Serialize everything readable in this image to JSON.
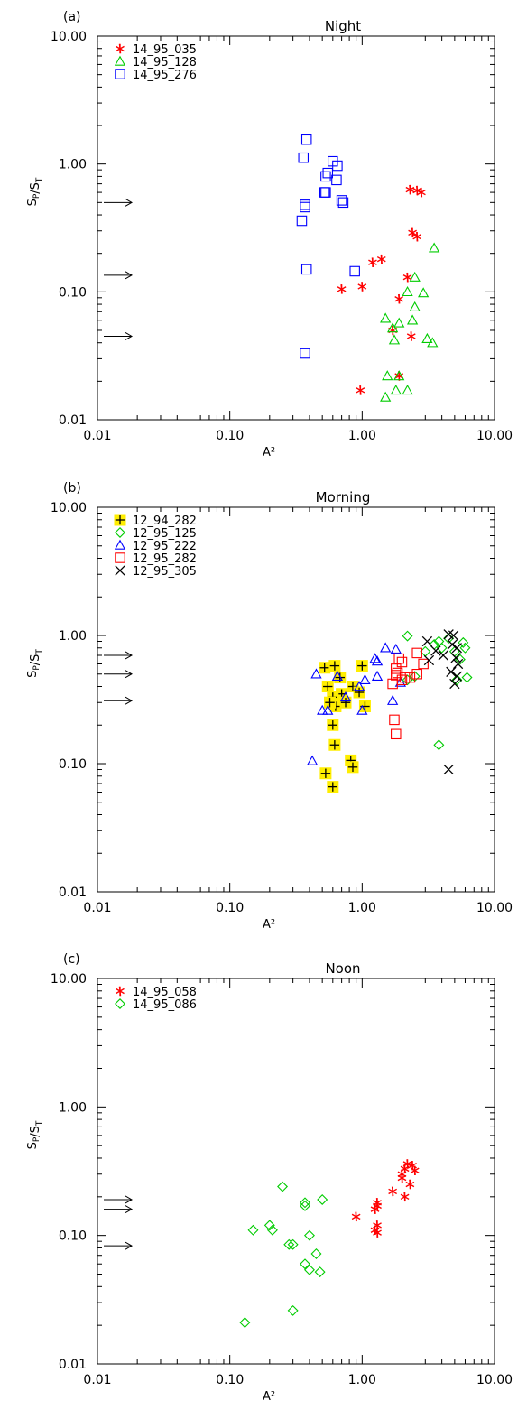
{
  "chart_data": [
    {
      "panel_label": "(a)",
      "title": "Night",
      "type": "scatter",
      "xlabel": "A²",
      "ylabel": "S_P/S_T",
      "xscale": "log",
      "yscale": "log",
      "xlim": [
        0.01,
        10
      ],
      "ylim": [
        0.01,
        10
      ],
      "x_tick_labels": [
        "0.01",
        "0.10",
        "1.00",
        "10.00"
      ],
      "y_tick_labels": [
        "0.01",
        "0.10",
        "1.00",
        "10.00"
      ],
      "legend_position": "top-left",
      "arrows_y": [
        0.5,
        0.135,
        0.045
      ],
      "series": [
        {
          "name": "14_95_035",
          "marker": "asterisk",
          "color": "#ff0000",
          "x": [
            2.3,
            2.6,
            2.8,
            2.4,
            2.6,
            1.4,
            1.2,
            2.2,
            1.0,
            0.7,
            1.9,
            1.7,
            2.35,
            1.9,
            0.97
          ],
          "y": [
            0.63,
            0.62,
            0.6,
            0.29,
            0.27,
            0.18,
            0.17,
            0.13,
            0.11,
            0.105,
            0.088,
            0.05,
            0.045,
            0.022,
            0.017
          ]
        },
        {
          "name": "14_95_128",
          "marker": "triangle",
          "color": "#00cc00",
          "x": [
            3.5,
            2.5,
            2.2,
            2.9,
            2.5,
            1.5,
            1.9,
            2.4,
            1.7,
            1.75,
            3.1,
            3.4,
            1.55,
            1.9,
            1.8,
            2.2,
            1.5
          ],
          "y": [
            0.22,
            0.13,
            0.1,
            0.098,
            0.076,
            0.062,
            0.057,
            0.06,
            0.052,
            0.042,
            0.043,
            0.04,
            0.022,
            0.022,
            0.017,
            0.017,
            0.015
          ]
        },
        {
          "name": "14_95_276",
          "marker": "square",
          "color": "#0000ff",
          "x": [
            0.38,
            0.36,
            0.65,
            0.6,
            0.55,
            0.53,
            0.64,
            0.52,
            0.53,
            0.7,
            0.72,
            0.37,
            0.37,
            0.35,
            0.38,
            0.88,
            0.37
          ],
          "y": [
            1.55,
            1.12,
            0.97,
            1.05,
            0.85,
            0.8,
            0.75,
            0.6,
            0.6,
            0.52,
            0.5,
            0.48,
            0.46,
            0.36,
            0.15,
            0.145,
            0.033
          ]
        }
      ]
    },
    {
      "panel_label": "(b)",
      "title": "Morning",
      "type": "scatter",
      "xlabel": "A²",
      "ylabel": "S_P/S_T",
      "xscale": "log",
      "yscale": "log",
      "xlim": [
        0.01,
        10
      ],
      "ylim": [
        0.01,
        10
      ],
      "x_tick_labels": [
        "0.01",
        "0.10",
        "1.00",
        "10.00"
      ],
      "y_tick_labels": [
        "0.01",
        "0.10",
        "1.00",
        "10.00"
      ],
      "legend_position": "top-left",
      "arrows_y": [
        0.7,
        0.5,
        0.31
      ],
      "series": [
        {
          "name": "12_94_282",
          "marker": "plus-highlighted",
          "color": "#000000",
          "highlight": "#ffee00",
          "x": [
            0.52,
            0.62,
            0.68,
            1.0,
            0.55,
            0.85,
            0.7,
            0.95,
            0.6,
            0.63,
            0.75,
            1.05,
            0.57,
            0.62,
            0.6,
            0.82,
            0.85,
            0.53,
            0.6
          ],
          "y": [
            0.56,
            0.58,
            0.47,
            0.58,
            0.4,
            0.4,
            0.35,
            0.36,
            0.33,
            0.28,
            0.3,
            0.28,
            0.3,
            0.14,
            0.2,
            0.106,
            0.094,
            0.084,
            0.066
          ]
        },
        {
          "name": "12_95_125",
          "marker": "diamond",
          "color": "#00cc00",
          "x": [
            2.2,
            3.5,
            3.8,
            4.0,
            4.5,
            5.0,
            5.8,
            6.0,
            3.0,
            2.5,
            5.5,
            6.2,
            5.2,
            2.2,
            3.8
          ],
          "y": [
            0.99,
            0.85,
            0.9,
            0.8,
            0.95,
            0.75,
            0.88,
            0.8,
            0.75,
            0.48,
            0.65,
            0.47,
            0.45,
            0.45,
            0.14
          ]
        },
        {
          "name": "12_95_222",
          "marker": "triangle",
          "color": "#0000ff",
          "x": [
            1.5,
            1.8,
            1.25,
            1.3,
            0.45,
            0.65,
            1.3,
            1.05,
            1.95,
            0.95,
            0.75,
            0.5,
            0.55,
            1.0,
            1.7,
            0.42
          ],
          "y": [
            0.8,
            0.78,
            0.66,
            0.63,
            0.5,
            0.48,
            0.48,
            0.45,
            0.43,
            0.4,
            0.33,
            0.26,
            0.26,
            0.26,
            0.31,
            0.105
          ]
        },
        {
          "name": "12_95_282",
          "marker": "square",
          "color": "#ff0000",
          "x": [
            2.6,
            2.9,
            1.9,
            2.0,
            1.8,
            1.85,
            1.8,
            2.1,
            2.3,
            1.7,
            2.6,
            2.0,
            1.75,
            1.8
          ],
          "y": [
            0.73,
            0.6,
            0.66,
            0.62,
            0.55,
            0.51,
            0.49,
            0.47,
            0.47,
            0.42,
            0.5,
            0.45,
            0.22,
            0.17
          ]
        },
        {
          "name": "12_95_305",
          "marker": "x",
          "color": "#000000",
          "x": [
            4.5,
            4.9,
            3.1,
            4.8,
            3.6,
            5.2,
            4.1,
            3.2,
            5.1,
            5.3,
            4.7,
            5.2,
            5.0,
            4.5
          ],
          "y": [
            1.02,
            1.0,
            0.9,
            0.85,
            0.76,
            0.8,
            0.7,
            0.64,
            0.67,
            0.6,
            0.52,
            0.48,
            0.42,
            0.09
          ]
        }
      ]
    },
    {
      "panel_label": "(c)",
      "title": "Noon",
      "type": "scatter",
      "xlabel": "A²",
      "ylabel": "S_P/S_T",
      "xscale": "log",
      "yscale": "log",
      "xlim": [
        0.01,
        10
      ],
      "ylim": [
        0.01,
        10
      ],
      "x_tick_labels": [
        "0.01",
        "0.10",
        "1.00",
        "10.00"
      ],
      "y_tick_labels": [
        "0.01",
        "0.10",
        "1.00",
        "10.00"
      ],
      "legend_position": "top-left",
      "arrows_y": [
        0.19,
        0.16,
        0.083
      ],
      "series": [
        {
          "name": "14_95_058",
          "marker": "asterisk",
          "color": "#ff0000",
          "x": [
            2.2,
            2.4,
            2.1,
            2.0,
            2.0,
            2.5,
            2.3,
            1.7,
            1.3,
            1.3,
            1.25,
            2.1,
            0.9,
            1.3,
            1.25,
            1.3
          ],
          "y": [
            0.36,
            0.35,
            0.33,
            0.3,
            0.28,
            0.32,
            0.25,
            0.22,
            0.18,
            0.17,
            0.16,
            0.2,
            0.14,
            0.12,
            0.11,
            0.105
          ]
        },
        {
          "name": "14_95_086",
          "marker": "diamond",
          "color": "#00cc00",
          "x": [
            0.25,
            0.5,
            0.37,
            0.37,
            0.2,
            0.15,
            0.21,
            0.4,
            0.28,
            0.3,
            0.45,
            0.37,
            0.4,
            0.48,
            0.13,
            0.3
          ],
          "y": [
            0.24,
            0.19,
            0.18,
            0.17,
            0.12,
            0.11,
            0.11,
            0.1,
            0.085,
            0.085,
            0.072,
            0.06,
            0.054,
            0.052,
            0.021,
            0.026
          ]
        }
      ]
    }
  ]
}
